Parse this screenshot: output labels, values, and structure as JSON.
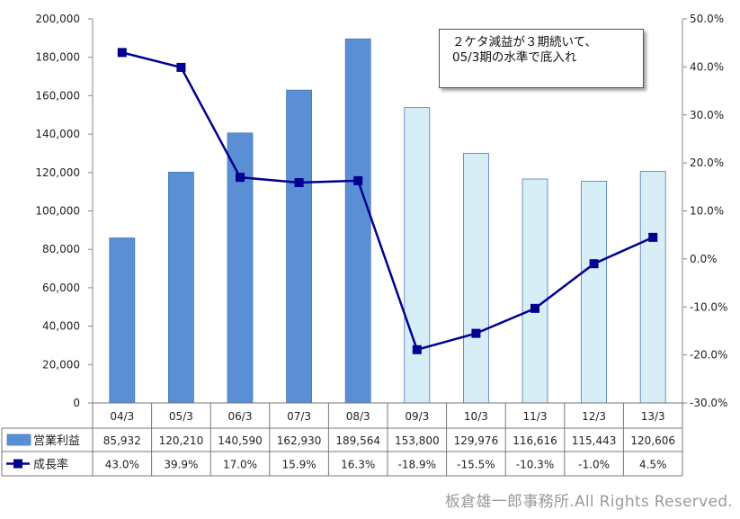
{
  "chart_data": {
    "type": "bar+line",
    "categories": [
      "04/3",
      "05/3",
      "06/3",
      "07/3",
      "08/3",
      "09/3",
      "10/3",
      "11/3",
      "12/3",
      "13/3"
    ],
    "series": [
      {
        "name": "営業利益",
        "type": "bar",
        "axis": "left",
        "values": [
          85932,
          120210,
          140590,
          162930,
          189564,
          153800,
          129976,
          116616,
          115443,
          120606
        ],
        "labels": [
          "85,932",
          "120,210",
          "140,590",
          "162,930",
          "189,564",
          "153,800",
          "129,976",
          "116,616",
          "115,443",
          "120,606"
        ],
        "colors": [
          "#5a8fd6",
          "#5a8fd6",
          "#5a8fd6",
          "#5a8fd6",
          "#5a8fd6",
          "#d7eef6",
          "#d7eef6",
          "#d7eef6",
          "#d7eef6",
          "#d7eef6"
        ]
      },
      {
        "name": "成長率",
        "type": "line",
        "axis": "right",
        "values": [
          43.0,
          39.9,
          17.0,
          15.9,
          16.3,
          -18.9,
          -15.5,
          -10.3,
          -1.0,
          4.5
        ],
        "labels": [
          "43.0%",
          "39.9%",
          "17.0%",
          "15.9%",
          "16.3%",
          "-18.9%",
          "-15.5%",
          "-10.3%",
          "-1.0%",
          "4.5%"
        ],
        "color": "#000090"
      }
    ],
    "y_left": {
      "ylim": [
        0,
        200000
      ],
      "ticks": [
        "0",
        "20,000",
        "40,000",
        "60,000",
        "80,000",
        "100,000",
        "120,000",
        "140,000",
        "160,000",
        "180,000",
        "200,000"
      ]
    },
    "y_right": {
      "ylim": [
        -30,
        50
      ],
      "ticks": [
        "-30.0%",
        "-20.0%",
        "-10.0%",
        "0.0%",
        "10.0%",
        "20.0%",
        "30.0%",
        "40.0%",
        "50.0%"
      ]
    },
    "grid": false,
    "legend": "data-table-left"
  },
  "annotation": {
    "line1": "２ケタ減益が３期続いて、",
    "line2": "05/3期の水準で底入れ"
  },
  "copyright": "板倉雄一郎事務所.All Rights Reserved."
}
